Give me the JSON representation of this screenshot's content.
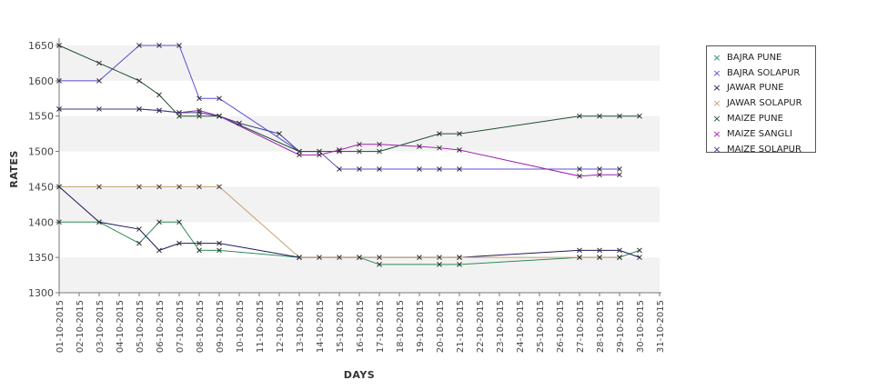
{
  "chart_data": {
    "type": "line",
    "xlabel": "DAYS",
    "ylabel": "RATES",
    "ylim": [
      1300,
      1650
    ],
    "yticks": [
      1300,
      1350,
      1400,
      1450,
      1500,
      1550,
      1600,
      1650
    ],
    "grid": "horizontal alternating bands",
    "legend_position": "right",
    "categories": [
      "01-10-2015",
      "02-10-2015",
      "03-10-2015",
      "04-10-2015",
      "05-10-2015",
      "06-10-2015",
      "07-10-2015",
      "08-10-2015",
      "09-10-2015",
      "10-10-2015",
      "11-10-2015",
      "12-10-2015",
      "13-10-2015",
      "14-10-2015",
      "15-10-2015",
      "16-10-2015",
      "17-10-2015",
      "18-10-2015",
      "19-10-2015",
      "20-10-2015",
      "21-10-2015",
      "22-10-2015",
      "23-10-2015",
      "24-10-2015",
      "25-10-2015",
      "26-10-2015",
      "27-10-2015",
      "28-10-2015",
      "29-10-2015",
      "30-10-2015",
      "31-10-2015"
    ],
    "series": [
      {
        "name": "BAJRA PUNE",
        "color": "#2e8b57",
        "points": [
          [
            "01-10-2015",
            1400
          ],
          [
            "03-10-2015",
            1400
          ],
          [
            "05-10-2015",
            1370
          ],
          [
            "06-10-2015",
            1400
          ],
          [
            "07-10-2015",
            1400
          ],
          [
            "08-10-2015",
            1360
          ],
          [
            "09-10-2015",
            1360
          ],
          [
            "13-10-2015",
            1350
          ],
          [
            "16-10-2015",
            1350
          ],
          [
            "17-10-2015",
            1340
          ],
          [
            "20-10-2015",
            1340
          ],
          [
            "21-10-2015",
            1340
          ],
          [
            "27-10-2015",
            1350
          ],
          [
            "28-10-2015",
            1350
          ],
          [
            "29-10-2015",
            1350
          ],
          [
            "30-10-2015",
            1360
          ]
        ]
      },
      {
        "name": "BAJRA SOLAPUR",
        "color": "#5a4fd0",
        "points": [
          [
            "01-10-2015",
            1600
          ],
          [
            "03-10-2015",
            1600
          ],
          [
            "05-10-2015",
            1650
          ],
          [
            "06-10-2015",
            1650
          ],
          [
            "07-10-2015",
            1650
          ],
          [
            "08-10-2015",
            1575
          ],
          [
            "09-10-2015",
            1575
          ],
          [
            "13-10-2015",
            1500
          ],
          [
            "14-10-2015",
            1500
          ],
          [
            "15-10-2015",
            1475
          ],
          [
            "16-10-2015",
            1475
          ],
          [
            "17-10-2015",
            1475
          ],
          [
            "19-10-2015",
            1475
          ],
          [
            "20-10-2015",
            1475
          ],
          [
            "21-10-2015",
            1475
          ],
          [
            "27-10-2015",
            1475
          ],
          [
            "28-10-2015",
            1475
          ],
          [
            "29-10-2015",
            1475
          ]
        ]
      },
      {
        "name": "JAWAR PUNE",
        "color": "#1a1a5e",
        "points": [
          [
            "01-10-2015",
            1450
          ],
          [
            "03-10-2015",
            1400
          ],
          [
            "05-10-2015",
            1390
          ],
          [
            "06-10-2015",
            1360
          ],
          [
            "07-10-2015",
            1370
          ],
          [
            "08-10-2015",
            1370
          ],
          [
            "09-10-2015",
            1370
          ],
          [
            "13-10-2015",
            1350
          ],
          [
            "21-10-2015",
            1350
          ],
          [
            "27-10-2015",
            1360
          ],
          [
            "28-10-2015",
            1360
          ],
          [
            "29-10-2015",
            1360
          ],
          [
            "30-10-2015",
            1350
          ]
        ]
      },
      {
        "name": "JAWAR SOLAPUR",
        "color": "#c8a070",
        "points": [
          [
            "01-10-2015",
            1450
          ],
          [
            "03-10-2015",
            1450
          ],
          [
            "05-10-2015",
            1450
          ],
          [
            "06-10-2015",
            1450
          ],
          [
            "07-10-2015",
            1450
          ],
          [
            "08-10-2015",
            1450
          ],
          [
            "09-10-2015",
            1450
          ],
          [
            "13-10-2015",
            1350
          ],
          [
            "14-10-2015",
            1350
          ],
          [
            "15-10-2015",
            1350
          ],
          [
            "16-10-2015",
            1350
          ],
          [
            "17-10-2015",
            1350
          ],
          [
            "19-10-2015",
            1350
          ],
          [
            "20-10-2015",
            1350
          ],
          [
            "21-10-2015",
            1350
          ],
          [
            "27-10-2015",
            1350
          ],
          [
            "28-10-2015",
            1350
          ],
          [
            "29-10-2015",
            1350
          ]
        ]
      },
      {
        "name": "MAIZE PUNE",
        "color": "#1f4f2f",
        "points": [
          [
            "01-10-2015",
            1650
          ],
          [
            "03-10-2015",
            1625
          ],
          [
            "05-10-2015",
            1600
          ],
          [
            "06-10-2015",
            1580
          ],
          [
            "07-10-2015",
            1550
          ],
          [
            "08-10-2015",
            1550
          ],
          [
            "09-10-2015",
            1550
          ],
          [
            "13-10-2015",
            1500
          ],
          [
            "14-10-2015",
            1500
          ],
          [
            "15-10-2015",
            1500
          ],
          [
            "16-10-2015",
            1500
          ],
          [
            "17-10-2015",
            1500
          ],
          [
            "20-10-2015",
            1525
          ],
          [
            "21-10-2015",
            1525
          ],
          [
            "27-10-2015",
            1550
          ],
          [
            "28-10-2015",
            1550
          ],
          [
            "29-10-2015",
            1550
          ],
          [
            "30-10-2015",
            1550
          ]
        ]
      },
      {
        "name": "MAIZE SANGLI",
        "color": "#a020b0",
        "points": [
          [
            "01-10-2015",
            1560
          ],
          [
            "05-10-2015",
            1560
          ],
          [
            "06-10-2015",
            1558
          ],
          [
            "07-10-2015",
            1555
          ],
          [
            "08-10-2015",
            1558
          ],
          [
            "09-10-2015",
            1550
          ],
          [
            "13-10-2015",
            1495
          ],
          [
            "14-10-2015",
            1495
          ],
          [
            "15-10-2015",
            1502
          ],
          [
            "16-10-2015",
            1510
          ],
          [
            "17-10-2015",
            1510
          ],
          [
            "19-10-2015",
            1507
          ],
          [
            "20-10-2015",
            1505
          ],
          [
            "21-10-2015",
            1502
          ],
          [
            "27-10-2015",
            1465
          ],
          [
            "28-10-2015",
            1467
          ],
          [
            "29-10-2015",
            1467
          ]
        ]
      },
      {
        "name": "MAIZE SOLAPUR",
        "color": "#3a3a8a",
        "points": [
          [
            "01-10-2015",
            1560
          ],
          [
            "03-10-2015",
            1560
          ],
          [
            "05-10-2015",
            1560
          ],
          [
            "06-10-2015",
            1558
          ],
          [
            "07-10-2015",
            1555
          ],
          [
            "08-10-2015",
            1555
          ],
          [
            "09-10-2015",
            1550
          ],
          [
            "10-10-2015",
            1540
          ],
          [
            "12-10-2015",
            1525
          ],
          [
            "13-10-2015",
            1500
          ]
        ]
      }
    ]
  }
}
